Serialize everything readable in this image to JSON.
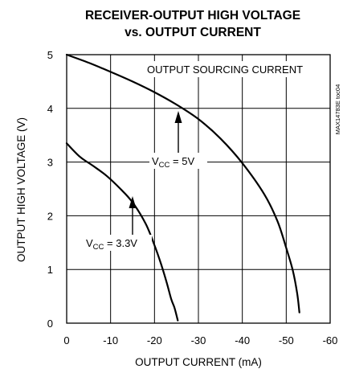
{
  "chart_data": {
    "type": "line",
    "title_line1": "RECEIVER-OUTPUT HIGH VOLTAGE",
    "title_line2": "vs. OUTPUT CURRENT",
    "xlabel": "OUTPUT CURRENT (mA)",
    "ylabel": "OUTPUT HIGH VOLTAGE (V)",
    "xlim": [
      0,
      -60
    ],
    "ylim": [
      0,
      5
    ],
    "xticks": [
      0,
      -10,
      -20,
      -30,
      -40,
      -50,
      -60
    ],
    "yticks": [
      0,
      1,
      2,
      3,
      4,
      5
    ],
    "xtick_labels": [
      "0",
      "-10",
      "-20",
      "-30",
      "-40",
      "-50",
      "-60"
    ],
    "ytick_labels": [
      "0",
      "1",
      "2",
      "3",
      "4",
      "5"
    ],
    "grid": true,
    "series": [
      {
        "name_main": "V",
        "name_sub": "CC",
        "name_rest": " = 5V",
        "x": [
          0,
          -5,
          -10,
          -15,
          -20,
          -25,
          -30,
          -35,
          -40,
          -45,
          -48,
          -50,
          -51.5,
          -52.5,
          -53
        ],
        "y": [
          5.0,
          4.85,
          4.68,
          4.5,
          4.3,
          4.07,
          3.8,
          3.44,
          2.98,
          2.4,
          1.9,
          1.4,
          0.98,
          0.55,
          0.2
        ]
      },
      {
        "name_main": "V",
        "name_sub": "CC",
        "name_rest": " = 3.3V",
        "x": [
          0,
          -3,
          -6,
          -9,
          -12,
          -15,
          -18,
          -20,
          -21.5,
          -22.8,
          -23.8,
          -24.5,
          -25,
          -25.3
        ],
        "y": [
          3.35,
          3.1,
          2.93,
          2.75,
          2.52,
          2.25,
          1.85,
          1.45,
          1.1,
          0.75,
          0.45,
          0.3,
          0.15,
          0.05
        ]
      }
    ],
    "annotations": {
      "sourcing": "OUTPUT SOURCING CURRENT",
      "sidecode": "MAX14783E toc04"
    }
  }
}
